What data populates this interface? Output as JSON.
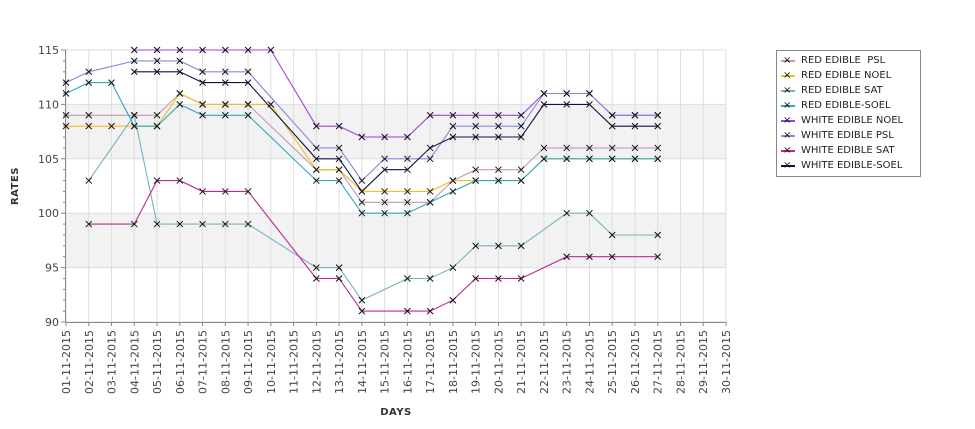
{
  "chart_data": {
    "type": "line",
    "title": "",
    "xlabel": "DAYS",
    "ylabel": "RATES",
    "ylim": [
      90,
      115
    ],
    "yticks": [
      "90",
      "95",
      "100",
      "105",
      "110",
      "115"
    ],
    "grid": true,
    "legend_position": "right",
    "x": [
      "01-11-2015",
      "02-11-2015",
      "03-11-2015",
      "04-11-2015",
      "05-11-2015",
      "06-11-2015",
      "07-11-2015",
      "08-11-2015",
      "09-11-2015",
      "10-11-2015",
      "11-11-2015",
      "12-11-2015",
      "13-11-2015",
      "14-11-2015",
      "15-11-2015",
      "16-11-2015",
      "17-11-2015",
      "18-11-2015",
      "19-11-2015",
      "20-11-2015",
      "21-11-2015",
      "22-11-2015",
      "23-11-2015",
      "24-11-2015",
      "25-11-2015",
      "26-11-2015",
      "27-11-2015",
      "28-11-2015",
      "29-11-2015",
      "30-11-2015"
    ],
    "series": [
      {
        "name": "RED EDIBLE  PSL",
        "color": "#c898b8",
        "values": [
          109,
          109,
          null,
          109,
          109,
          111,
          110,
          110,
          110,
          null,
          null,
          104,
          104,
          101,
          101,
          101,
          101,
          103,
          104,
          104,
          104,
          106,
          106,
          106,
          106,
          106,
          106,
          null,
          null,
          null
        ]
      },
      {
        "name": "RED EDIBLE NOEL",
        "color": "#f0c020",
        "values": [
          108,
          108,
          108,
          108,
          108,
          111,
          110,
          110,
          110,
          110,
          null,
          104,
          104,
          102,
          102,
          102,
          102,
          103,
          103,
          103,
          103,
          105,
          105,
          105,
          105,
          105,
          105,
          null,
          null,
          null
        ]
      },
      {
        "name": "RED EDIBLE SAT",
        "color": "#78b0c0",
        "values": [
          null,
          103,
          null,
          109,
          99,
          99,
          99,
          99,
          99,
          null,
          null,
          95,
          95,
          92,
          null,
          94,
          94,
          95,
          97,
          97,
          97,
          null,
          100,
          100,
          98,
          null,
          98,
          null,
          null,
          null
        ]
      },
      {
        "name": "RED EDIBLE-SOEL",
        "color": "#30a8c0",
        "values": [
          111,
          112,
          112,
          108,
          108,
          110,
          109,
          109,
          109,
          null,
          null,
          103,
          103,
          100,
          100,
          100,
          101,
          102,
          103,
          103,
          103,
          105,
          105,
          105,
          105,
          105,
          105,
          null,
          null,
          null
        ]
      },
      {
        "name": "WHITE EDIBLE NOEL",
        "color": "#a040e0",
        "values": [
          null,
          null,
          null,
          115,
          115,
          115,
          115,
          115,
          115,
          115,
          null,
          108,
          108,
          107,
          107,
          107,
          109,
          109,
          109,
          109,
          109,
          111,
          111,
          111,
          109,
          109,
          109,
          null,
          null,
          null
        ]
      },
      {
        "name": "WHITE EDIBLE PSL",
        "color": "#8888e0",
        "values": [
          112,
          113,
          null,
          114,
          114,
          114,
          113,
          113,
          113,
          null,
          null,
          106,
          106,
          103,
          105,
          105,
          105,
          108,
          108,
          108,
          108,
          111,
          111,
          111,
          109,
          109,
          109,
          null,
          null,
          null
        ]
      },
      {
        "name": "WHITE EDIBLE SAT",
        "color": "#c02890",
        "values": [
          null,
          99,
          null,
          99,
          103,
          103,
          102,
          102,
          102,
          null,
          null,
          94,
          94,
          91,
          null,
          91,
          91,
          92,
          94,
          94,
          94,
          null,
          96,
          96,
          96,
          null,
          96,
          null,
          null,
          null
        ]
      },
      {
        "name": "WHITE EDIBLE-SOEL",
        "color": "#101050",
        "values": [
          null,
          null,
          null,
          113,
          113,
          113,
          112,
          112,
          112,
          null,
          null,
          105,
          105,
          102,
          104,
          104,
          106,
          107,
          107,
          107,
          107,
          110,
          110,
          110,
          108,
          108,
          108,
          null,
          null,
          null
        ]
      }
    ]
  }
}
